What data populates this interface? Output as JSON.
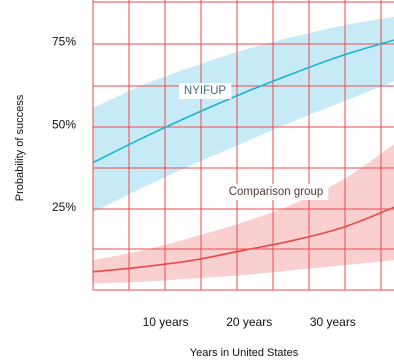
{
  "chart_data": {
    "type": "line",
    "xlabel": "Years in United States",
    "ylabel": "Probability of success",
    "x_ticks": [
      {
        "value": 10,
        "label": "10 years"
      },
      {
        "value": 20,
        "label": "20 years"
      },
      {
        "value": 30,
        "label": "30 years"
      }
    ],
    "y_ticks": [
      {
        "value": 25,
        "label": "25%"
      },
      {
        "value": 50,
        "label": "50%"
      },
      {
        "value": 75,
        "label": "75%"
      }
    ],
    "xlim": [
      0,
      36
    ],
    "ylim": [
      0,
      87
    ],
    "grid": true,
    "series": [
      {
        "name": "NYIFUP",
        "color": "#1bb4d2",
        "band_color": "#c6ebf7",
        "x": [
          0,
          6,
          12,
          18,
          24,
          30,
          36
        ],
        "y": [
          38.5,
          46,
          53,
          59.5,
          65.5,
          71,
          75.5
        ],
        "lower": [
          23.5,
          31,
          38,
          44.5,
          51,
          57,
          63
        ],
        "upper": [
          55,
          62,
          67.5,
          72.5,
          76.5,
          80,
          82.5
        ]
      },
      {
        "name": "Comparison group",
        "color": "#ea4a46",
        "band_color": "#f9cfd0",
        "x": [
          0,
          6,
          12,
          18,
          24,
          30,
          36
        ],
        "y": [
          5.5,
          7,
          9,
          12,
          15,
          19,
          25
        ],
        "lower": [
          2,
          2.5,
          3.5,
          4.5,
          6,
          7.5,
          9
        ],
        "upper": [
          9,
          12,
          16,
          20.5,
          26,
          33.5,
          44
        ]
      }
    ]
  }
}
